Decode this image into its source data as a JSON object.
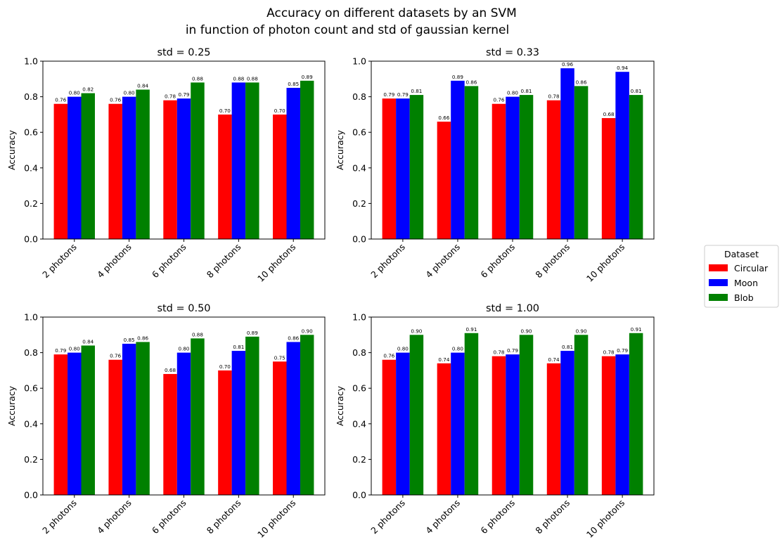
{
  "figure": {
    "title_line1": "Accuracy on different datasets by an SVM",
    "title_line2": "in function of photon count and std of gaussian kernel"
  },
  "legend": {
    "title": "Dataset",
    "position": "center-right"
  },
  "colors": {
    "Circular": "#ff0000",
    "Moon": "#0000ff",
    "Blob": "#008000"
  },
  "chart_data": [
    {
      "type": "bar",
      "title": "std = 0.25",
      "ylabel": "Accuracy",
      "xlabel": "",
      "ylim": [
        0,
        1
      ],
      "yticks": [
        "0.0",
        "0.2",
        "0.4",
        "0.6",
        "0.8",
        "1.0"
      ],
      "categories": [
        "2 photons",
        "4 photons",
        "6 photons",
        "8 photons",
        "10 photons"
      ],
      "series": [
        {
          "name": "Circular",
          "values": [
            0.76,
            0.76,
            0.78,
            0.7,
            0.7
          ],
          "labels": [
            "0.76",
            "0.76",
            "0.78",
            "0.70",
            "0.70"
          ]
        },
        {
          "name": "Moon",
          "values": [
            0.8,
            0.8,
            0.79,
            0.88,
            0.85
          ],
          "labels": [
            "0.80",
            "0.80",
            "0.79",
            "0.88",
            "0.85"
          ]
        },
        {
          "name": "Blob",
          "values": [
            0.82,
            0.84,
            0.88,
            0.88,
            0.89
          ],
          "labels": [
            "0.82",
            "0.84",
            "0.88",
            "0.88",
            "0.89"
          ]
        }
      ]
    },
    {
      "type": "bar",
      "title": "std = 0.33",
      "ylabel": "Accuracy",
      "xlabel": "",
      "ylim": [
        0,
        1
      ],
      "yticks": [
        "0.0",
        "0.2",
        "0.4",
        "0.6",
        "0.8",
        "1.0"
      ],
      "categories": [
        "2 photons",
        "4 photons",
        "6 photons",
        "8 photons",
        "10 photons"
      ],
      "series": [
        {
          "name": "Circular",
          "values": [
            0.79,
            0.66,
            0.76,
            0.78,
            0.68
          ],
          "labels": [
            "0.79",
            "0.66",
            "0.76",
            "0.78",
            "0.68"
          ]
        },
        {
          "name": "Moon",
          "values": [
            0.79,
            0.89,
            0.8,
            0.96,
            0.94
          ],
          "labels": [
            "0.79",
            "0.89",
            "0.80",
            "0.96",
            "0.94"
          ]
        },
        {
          "name": "Blob",
          "values": [
            0.81,
            0.86,
            0.81,
            0.86,
            0.81
          ],
          "labels": [
            "0.81",
            "0.86",
            "0.81",
            "0.86",
            "0.81"
          ]
        }
      ]
    },
    {
      "type": "bar",
      "title": "std = 0.50",
      "ylabel": "Accuracy",
      "xlabel": "",
      "ylim": [
        0,
        1
      ],
      "yticks": [
        "0.0",
        "0.2",
        "0.4",
        "0.6",
        "0.8",
        "1.0"
      ],
      "categories": [
        "2 photons",
        "4 photons",
        "6 photons",
        "8 photons",
        "10 photons"
      ],
      "series": [
        {
          "name": "Circular",
          "values": [
            0.79,
            0.76,
            0.68,
            0.7,
            0.75
          ],
          "labels": [
            "0.79",
            "0.76",
            "0.68",
            "0.70",
            "0.75"
          ]
        },
        {
          "name": "Moon",
          "values": [
            0.8,
            0.85,
            0.8,
            0.81,
            0.86
          ],
          "labels": [
            "0.80",
            "0.85",
            "0.80",
            "0.81",
            "0.86"
          ]
        },
        {
          "name": "Blob",
          "values": [
            0.84,
            0.86,
            0.88,
            0.89,
            0.9
          ],
          "labels": [
            "0.84",
            "0.86",
            "0.88",
            "0.89",
            "0.90"
          ]
        }
      ]
    },
    {
      "type": "bar",
      "title": "std = 1.00",
      "ylabel": "Accuracy",
      "xlabel": "",
      "ylim": [
        0,
        1
      ],
      "yticks": [
        "0.0",
        "0.2",
        "0.4",
        "0.6",
        "0.8",
        "1.0"
      ],
      "categories": [
        "2 photons",
        "4 photons",
        "6 photons",
        "8 photons",
        "10 photons"
      ],
      "series": [
        {
          "name": "Circular",
          "values": [
            0.76,
            0.74,
            0.78,
            0.74,
            0.78
          ],
          "labels": [
            "0.76",
            "0.74",
            "0.78",
            "0.74",
            "0.78"
          ]
        },
        {
          "name": "Moon",
          "values": [
            0.8,
            0.8,
            0.79,
            0.81,
            0.79
          ],
          "labels": [
            "0.80",
            "0.80",
            "0.79",
            "0.81",
            "0.79"
          ]
        },
        {
          "name": "Blob",
          "values": [
            0.9,
            0.91,
            0.9,
            0.9,
            0.91
          ],
          "labels": [
            "0.90",
            "0.91",
            "0.90",
            "0.90",
            "0.91"
          ]
        }
      ]
    }
  ]
}
